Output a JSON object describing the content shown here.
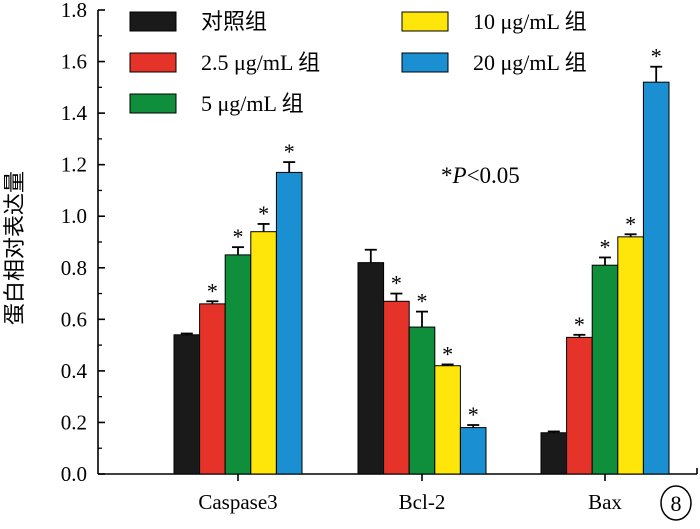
{
  "chart_data": {
    "type": "bar",
    "categories": [
      "Caspase3",
      "Bcl-2",
      "Bax"
    ],
    "series": [
      {
        "name": "对照组",
        "color": "#1a1a1a",
        "values": [
          0.54,
          0.82,
          0.16
        ],
        "errors": [
          0.005,
          0.05,
          0.005
        ],
        "significant": [
          false,
          false,
          false
        ]
      },
      {
        "name": "2.5 μg/mL 组",
        "color": "#e5332a",
        "values": [
          0.66,
          0.67,
          0.53
        ],
        "errors": [
          0.01,
          0.03,
          0.01
        ],
        "significant": [
          true,
          true,
          true
        ]
      },
      {
        "name": "5 μg/mL 组",
        "color": "#0f8f3c",
        "values": [
          0.85,
          0.57,
          0.81
        ],
        "errors": [
          0.03,
          0.06,
          0.03
        ],
        "significant": [
          true,
          true,
          true
        ]
      },
      {
        "name": "10 μg/mL 组",
        "color": "#ffe60a",
        "values": [
          0.94,
          0.42,
          0.92
        ],
        "errors": [
          0.03,
          0.005,
          0.01
        ],
        "significant": [
          true,
          true,
          true
        ]
      },
      {
        "name": "20 μg/mL 组",
        "color": "#1a8fd2",
        "values": [
          1.17,
          0.18,
          1.52
        ],
        "errors": [
          0.04,
          0.01,
          0.06
        ],
        "significant": [
          true,
          true,
          true
        ]
      }
    ],
    "ylabel": "蛋白相对表达量",
    "xlabel": "",
    "ylim": [
      0,
      1.8
    ],
    "yticks": [
      "0.0",
      "0.2",
      "0.4",
      "0.6",
      "0.8",
      "1.0",
      "1.2",
      "1.4",
      "1.6",
      "1.8"
    ],
    "grid": false,
    "legend_position": "top-left",
    "annotation": {
      "star": "*",
      "p_label": "P",
      "p_text": "<0.05"
    },
    "significance_marker": "*",
    "panel_label": "8"
  }
}
